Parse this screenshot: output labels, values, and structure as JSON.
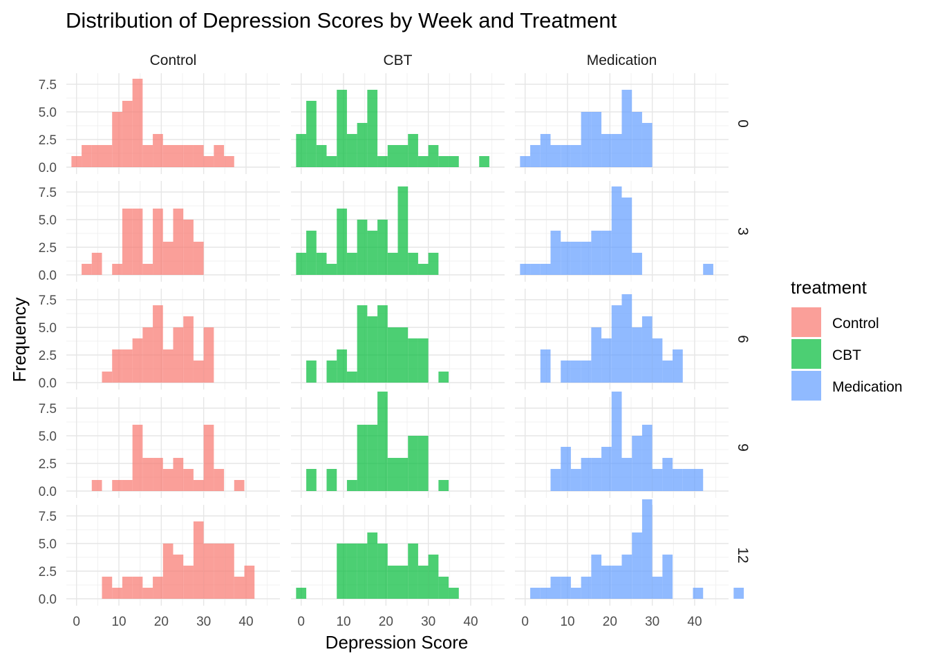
{
  "chart_data": {
    "type": "histogram",
    "title": "Distribution of Depression Scores by Week and Treatment",
    "xlabel": "Depression Score",
    "ylabel": "Frequency",
    "facet_columns": [
      "Control",
      "CBT",
      "Medication"
    ],
    "facet_rows": [
      "0",
      "3",
      "6",
      "9",
      "12"
    ],
    "x_range": [
      -2.4,
      48
    ],
    "y_range": [
      0,
      8.5
    ],
    "x_ticks": [
      0,
      10,
      20,
      30,
      40
    ],
    "x_tick_labels": [
      "0",
      "10",
      "20",
      "30",
      "40"
    ],
    "y_ticks": [
      0,
      2.5,
      5,
      7.5
    ],
    "y_tick_labels": [
      "0.0",
      "2.5",
      "5.0",
      "7.5"
    ],
    "bin_start": -1.2,
    "bin_width": 2.4,
    "grid": true,
    "legend": {
      "title": "treatment",
      "position": "right",
      "entries": [
        {
          "label": "Control",
          "color": "#F8766D"
        },
        {
          "label": "CBT",
          "color": "#00BA38"
        },
        {
          "label": "Medication",
          "color": "#619CFF"
        }
      ]
    },
    "counts": {
      "0": {
        "Control": [
          1,
          2,
          2,
          2,
          5,
          6,
          8,
          2,
          3,
          2,
          2,
          2,
          2,
          1,
          2,
          1
        ],
        "CBT": [
          3,
          6,
          2,
          1,
          7,
          3,
          4,
          7,
          1,
          2,
          2,
          3,
          1,
          2,
          1,
          1,
          0,
          0,
          1
        ],
        "Medication": [
          1,
          2,
          3,
          2,
          2,
          2,
          5,
          5,
          3,
          3,
          7,
          5,
          4
        ]
      },
      "3": {
        "Control": [
          0,
          1,
          2,
          0,
          1,
          6,
          6,
          1,
          6,
          3,
          6,
          5,
          3
        ],
        "CBT": [
          2,
          4,
          2,
          1,
          6,
          2,
          5,
          4,
          5,
          2,
          8,
          2,
          1,
          2
        ],
        "Medication": [
          1,
          1,
          1,
          4,
          3,
          3,
          3,
          4,
          4,
          8,
          7,
          2,
          0,
          0,
          0,
          0,
          0,
          0,
          1
        ]
      },
      "6": {
        "Control": [
          0,
          0,
          0,
          1,
          3,
          3,
          4,
          5,
          7,
          3,
          5,
          6,
          2,
          5
        ],
        "CBT": [
          0,
          2,
          0,
          2,
          3,
          1,
          7,
          6,
          7,
          5,
          5,
          4,
          4,
          0,
          1
        ],
        "Medication": [
          0,
          0,
          3,
          0,
          2,
          2,
          2,
          5,
          4,
          7,
          8,
          5,
          6,
          4,
          2,
          3
        ]
      },
      "9": {
        "Control": [
          0,
          0,
          1,
          0,
          1,
          1,
          6,
          3,
          3,
          2,
          3,
          2,
          1,
          6,
          2,
          0,
          1
        ],
        "CBT": [
          0,
          2,
          0,
          2,
          0,
          1,
          6,
          6,
          9,
          3,
          3,
          5,
          5,
          0,
          1
        ],
        "Medication": [
          0,
          0,
          0,
          2,
          4,
          2,
          3,
          3,
          4,
          9,
          3,
          5,
          6,
          2,
          3,
          2,
          2,
          2
        ]
      },
      "12": {
        "Control": [
          0,
          0,
          0,
          2,
          1,
          2,
          2,
          1,
          2,
          5,
          4,
          3,
          7,
          5,
          5,
          5,
          2,
          3
        ],
        "CBT": [
          1,
          0,
          0,
          0,
          5,
          5,
          5,
          6,
          5,
          3,
          3,
          5,
          3,
          4,
          2,
          1
        ],
        "Medication": [
          0,
          1,
          1,
          2,
          2,
          1,
          2,
          4,
          3,
          3,
          4,
          6,
          9,
          2,
          4,
          0,
          0,
          1,
          0,
          0,
          0,
          1
        ]
      }
    }
  }
}
